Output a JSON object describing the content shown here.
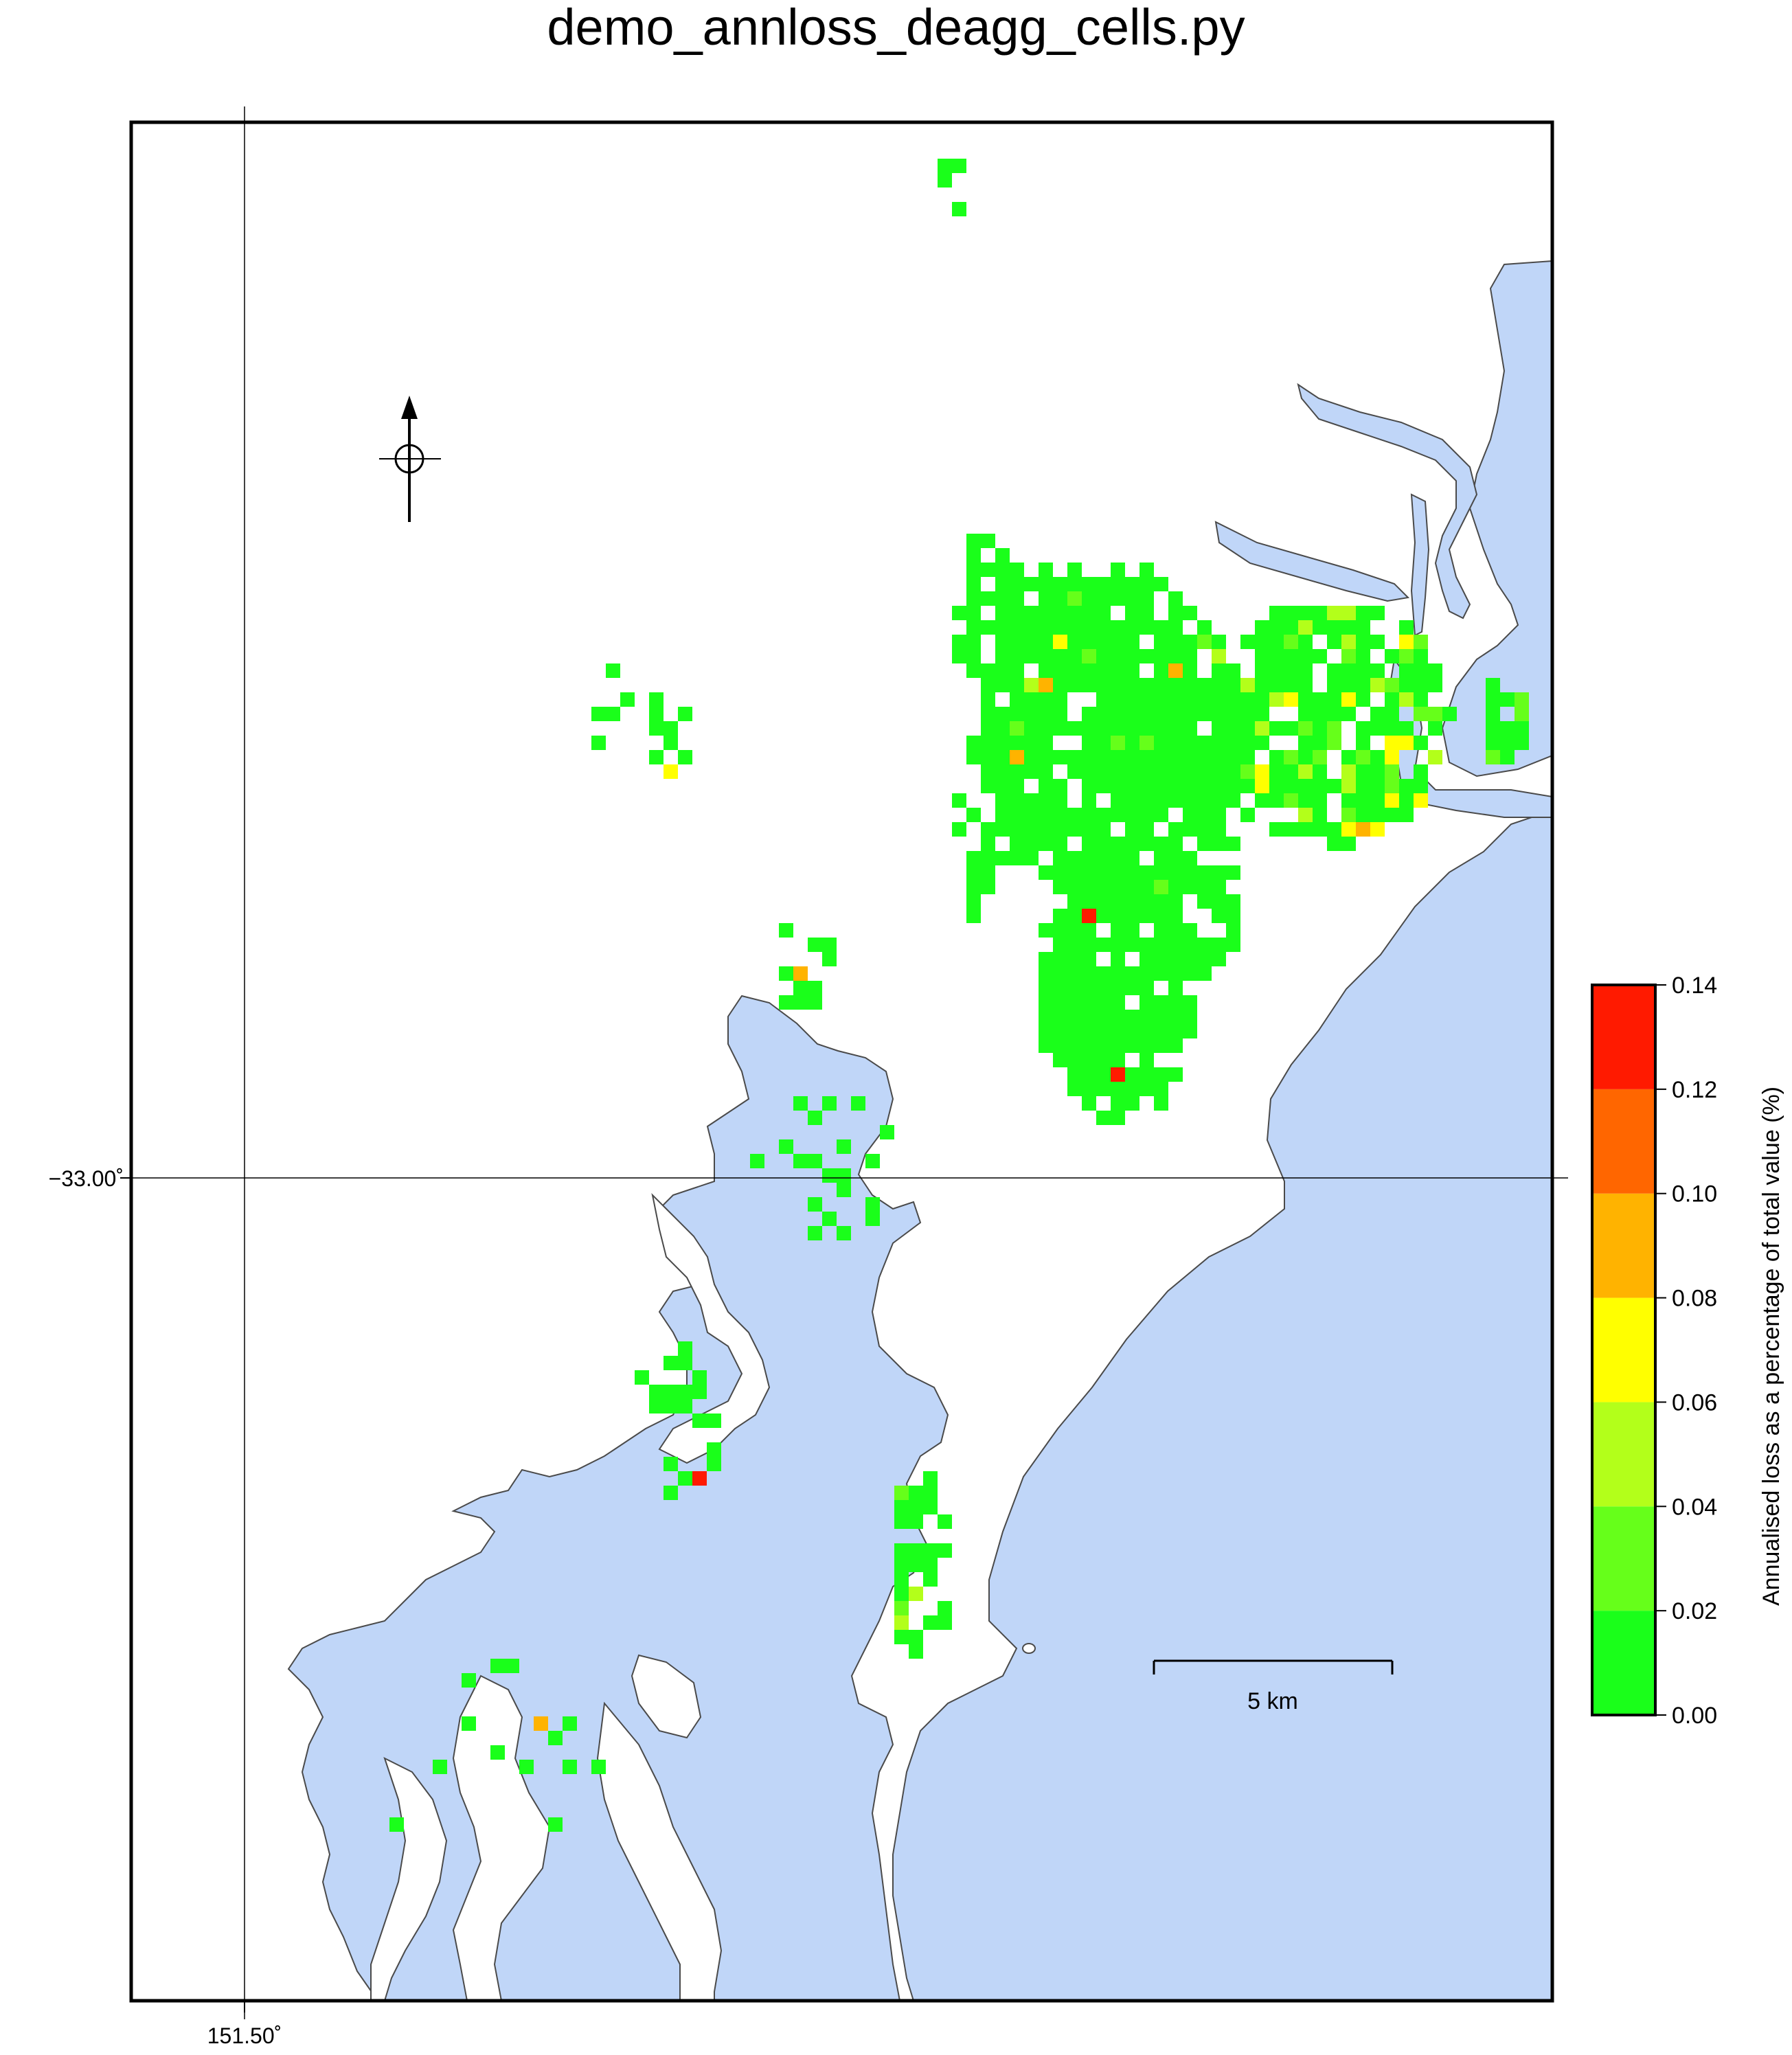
{
  "title": "demo_annloss_deagg_cells.py",
  "axes": {
    "lat_label": "−33.00˚",
    "lon_label": "151.50˚"
  },
  "scalebar": {
    "label": "5 km"
  },
  "colorbar": {
    "title": "Annualised loss as a percentage of total value (%)",
    "ticks": [
      "0.00",
      "0.02",
      "0.04",
      "0.06",
      "0.08",
      "0.10",
      "0.12",
      "0.14"
    ],
    "colors": [
      "#1aff1a",
      "#66ff1a",
      "#b3ff1a",
      "#ffff00",
      "#ffb300",
      "#ff6600",
      "#ff1a00"
    ]
  },
  "map_colors": {
    "water": "#c0d6f8",
    "land": "#ffffff",
    "coast": "#4a4a4a"
  },
  "north_arrow": {
    "symbol": "north-arrow"
  }
}
